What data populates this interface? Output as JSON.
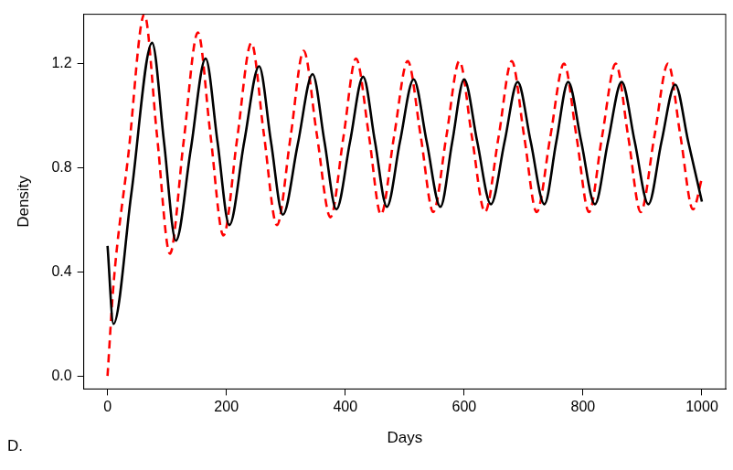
{
  "chart_data": {
    "type": "line",
    "panel": "D.",
    "x_label": "Days",
    "y_label": "Density",
    "xlim": [
      -40,
      1040
    ],
    "ylim": [
      -0.05,
      1.39
    ],
    "xticks": [
      0,
      200,
      400,
      600,
      800,
      1000
    ],
    "yticks": [
      {
        "value": 0,
        "label": "0.0"
      },
      {
        "value": 0.4,
        "label": "0.4"
      },
      {
        "value": 0.8,
        "label": "0.8"
      },
      {
        "value": 1.2,
        "label": "1.2"
      }
    ],
    "grid": false,
    "series": [
      {
        "color": "#000000",
        "line_style": "solid",
        "x": [
          0,
          10,
          40,
          75,
          95,
          115,
          140,
          165,
          185,
          205,
          230,
          255,
          275,
          295,
          320,
          345,
          365,
          385,
          408,
          430,
          450,
          470,
          492,
          515,
          537,
          560,
          580,
          600,
          622,
          645,
          668,
          690,
          712,
          735,
          755,
          775,
          797,
          820,
          842,
          865,
          887,
          910,
          932,
          955,
          977,
          1000
        ],
        "values": [
          0.5,
          0.2,
          0.7,
          1.28,
          0.9,
          0.52,
          0.87,
          1.22,
          0.9,
          0.58,
          0.9,
          1.19,
          0.9,
          0.62,
          0.89,
          1.16,
          0.9,
          0.64,
          0.9,
          1.15,
          0.9,
          0.65,
          0.9,
          1.14,
          0.9,
          0.65,
          0.9,
          1.14,
          0.9,
          0.66,
          0.9,
          1.13,
          0.9,
          0.66,
          0.9,
          1.13,
          0.9,
          0.66,
          0.9,
          1.13,
          0.9,
          0.66,
          0.9,
          1.12,
          0.9,
          0.67
        ]
      },
      {
        "color": "#ff0000",
        "line_style": "dashed",
        "x": [
          0,
          10,
          35,
          62,
          83,
          105,
          128,
          152,
          173,
          195,
          218,
          242,
          263,
          285,
          308,
          330,
          352,
          375,
          397,
          418,
          440,
          460,
          482,
          505,
          527,
          548,
          570,
          592,
          613,
          635,
          658,
          680,
          701,
          722,
          745,
          768,
          789,
          810,
          832,
          855,
          876,
          897,
          920,
          943,
          964,
          985,
          1000
        ],
        "values": [
          0,
          0.35,
          0.85,
          1.39,
          0.93,
          0.47,
          0.9,
          1.32,
          0.93,
          0.54,
          0.91,
          1.28,
          0.93,
          0.58,
          0.92,
          1.25,
          0.93,
          0.61,
          0.92,
          1.22,
          0.92,
          0.62,
          0.92,
          1.21,
          0.92,
          0.63,
          0.92,
          1.21,
          0.92,
          0.63,
          0.92,
          1.21,
          0.92,
          0.63,
          0.92,
          1.2,
          0.92,
          0.63,
          0.92,
          1.2,
          0.92,
          0.63,
          0.92,
          1.2,
          0.92,
          0.64,
          0.76
        ]
      }
    ]
  }
}
